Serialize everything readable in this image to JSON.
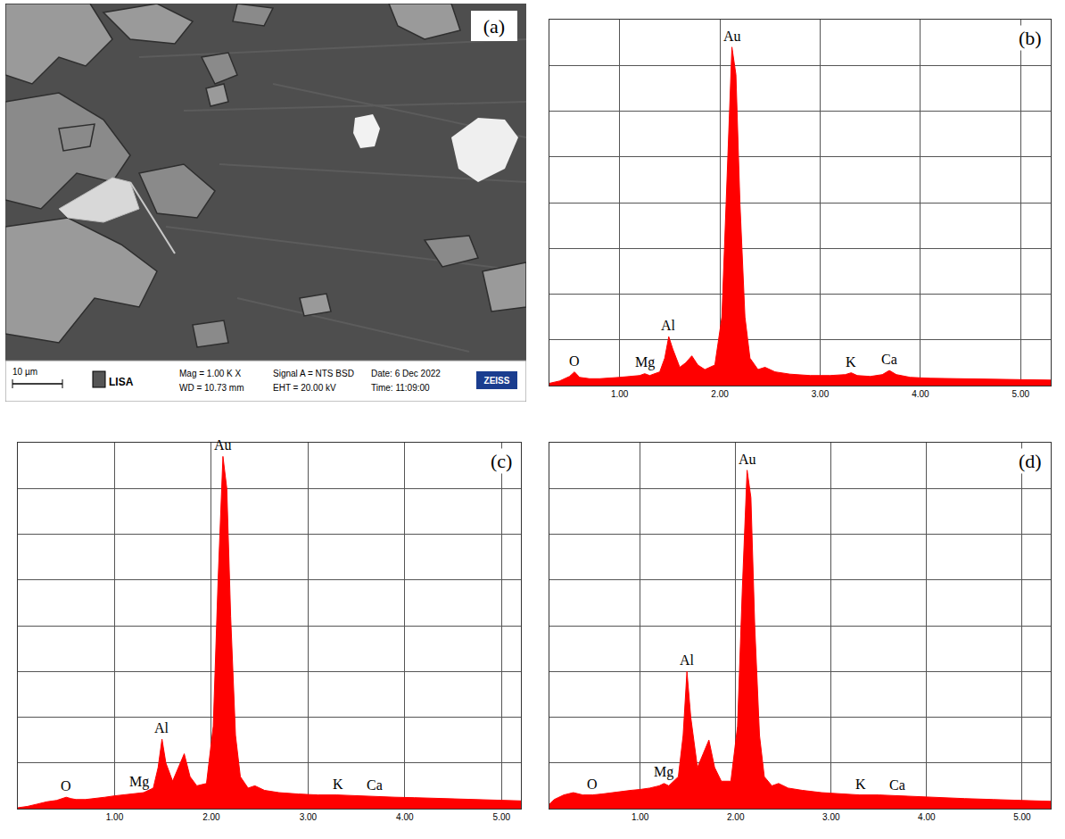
{
  "sem_image": {
    "panel": "(a)",
    "scale_bar": "10 µm",
    "logo": "LISA",
    "mag": "Mag =  1.00 K X",
    "wd": "WD = 10.73 mm",
    "signal": "Signal A = NTS BSD",
    "eht": "EHT = 20.00 kV",
    "date": "Date: 6 Dec 2022",
    "time": "Time: 11:09:00",
    "brand": "ZEISS"
  },
  "chart_data": [
    {
      "type": "area",
      "panel": "(b)",
      "color": "#ff0000",
      "grid": true,
      "tick_labels": "x",
      "xlim": [
        0.3,
        5.3
      ],
      "xticks": [
        {
          "value": 1,
          "label": "1.00"
        },
        {
          "value": 2,
          "label": "2.00"
        },
        {
          "value": 3,
          "label": "3.00"
        },
        {
          "value": 4,
          "label": "4.00"
        },
        {
          "value": 5,
          "label": "5.00"
        }
      ],
      "ylim": [
        0,
        8
      ],
      "yticks": [
        0,
        1,
        2,
        3,
        4,
        5,
        6,
        7,
        8
      ],
      "x": [
        0.3,
        0.4,
        0.5,
        0.55,
        0.6,
        0.7,
        0.8,
        0.9,
        1.0,
        1.1,
        1.2,
        1.25,
        1.3,
        1.4,
        1.45,
        1.49,
        1.53,
        1.6,
        1.66,
        1.72,
        1.78,
        1.85,
        1.95,
        2.02,
        2.07,
        2.12,
        2.16,
        2.2,
        2.25,
        2.3,
        2.38,
        2.45,
        2.55,
        2.7,
        2.9,
        3.1,
        3.25,
        3.31,
        3.37,
        3.5,
        3.62,
        3.69,
        3.76,
        3.9,
        4.1,
        4.4,
        4.7,
        5.0,
        5.3
      ],
      "values": [
        0.05,
        0.1,
        0.2,
        0.3,
        0.18,
        0.15,
        0.15,
        0.16,
        0.18,
        0.2,
        0.22,
        0.26,
        0.22,
        0.3,
        0.6,
        1.07,
        0.8,
        0.4,
        0.5,
        0.65,
        0.45,
        0.35,
        0.45,
        1.5,
        4.5,
        7.4,
        6.8,
        4.0,
        1.5,
        0.6,
        0.35,
        0.4,
        0.3,
        0.25,
        0.22,
        0.22,
        0.24,
        0.28,
        0.22,
        0.2,
        0.24,
        0.33,
        0.24,
        0.18,
        0.16,
        0.15,
        0.14,
        0.13,
        0.12
      ],
      "peaks": [
        {
          "label": "O",
          "x": 0.55,
          "y": 0.3
        },
        {
          "label": "Mg",
          "x": 1.25,
          "y": 0.26
        },
        {
          "label": "Al",
          "x": 1.49,
          "y": 1.07
        },
        {
          "label": "Au",
          "x": 2.12,
          "y": 7.4
        },
        {
          "label": "K",
          "x": 3.31,
          "y": 0.28
        },
        {
          "label": "Ca",
          "x": 3.69,
          "y": 0.33
        }
      ]
    },
    {
      "type": "area",
      "panel": "(c)",
      "color": "#ff0000",
      "grid": true,
      "tick_labels": "x",
      "xlim": [
        0,
        5.2
      ],
      "xticks": [
        {
          "value": 1,
          "label": "1.00"
        },
        {
          "value": 2,
          "label": "2.00"
        },
        {
          "value": 3,
          "label": "3.00"
        },
        {
          "value": 4,
          "label": "4.00"
        },
        {
          "value": 5,
          "label": "5.00"
        }
      ],
      "ylim": [
        0,
        8
      ],
      "yticks": [
        0,
        1,
        2,
        3,
        4,
        5,
        6,
        7,
        8
      ],
      "x": [
        0.0,
        0.1,
        0.2,
        0.3,
        0.4,
        0.5,
        0.55,
        0.6,
        0.7,
        0.8,
        0.9,
        1.0,
        1.1,
        1.2,
        1.25,
        1.3,
        1.4,
        1.45,
        1.49,
        1.53,
        1.6,
        1.66,
        1.72,
        1.78,
        1.85,
        1.95,
        2.02,
        2.07,
        2.12,
        2.16,
        2.2,
        2.25,
        2.3,
        2.38,
        2.45,
        2.55,
        2.7,
        2.9,
        3.1,
        3.3,
        3.5,
        3.7,
        3.9,
        4.1,
        4.4,
        4.7,
        5.0,
        5.2
      ],
      "values": [
        0.02,
        0.05,
        0.1,
        0.15,
        0.18,
        0.25,
        0.22,
        0.2,
        0.2,
        0.22,
        0.25,
        0.28,
        0.3,
        0.32,
        0.33,
        0.35,
        0.45,
        0.9,
        1.52,
        1.0,
        0.6,
        0.9,
        1.2,
        0.7,
        0.5,
        0.55,
        1.8,
        5.0,
        7.7,
        7.0,
        4.2,
        1.6,
        0.7,
        0.45,
        0.5,
        0.4,
        0.35,
        0.32,
        0.3,
        0.3,
        0.28,
        0.27,
        0.25,
        0.24,
        0.22,
        0.2,
        0.18,
        0.17
      ],
      "peaks": [
        {
          "label": "O",
          "x": 0.5,
          "y": 0.25
        },
        {
          "label": "Mg",
          "x": 1.25,
          "y": 0.33
        },
        {
          "label": "Al",
          "x": 1.49,
          "y": 1.52
        },
        {
          "label": "Au",
          "x": 2.12,
          "y": 7.7
        },
        {
          "label": "K",
          "x": 3.31,
          "y": 0.3
        },
        {
          "label": "Ca",
          "x": 3.69,
          "y": 0.28
        }
      ]
    },
    {
      "type": "area",
      "panel": "(d)",
      "color": "#ff0000",
      "grid": true,
      "tick_labels": "x",
      "xlim": [
        0.05,
        5.3
      ],
      "xticks": [
        {
          "value": 1,
          "label": "1.00"
        },
        {
          "value": 2,
          "label": "2.00"
        },
        {
          "value": 3,
          "label": "3.00"
        },
        {
          "value": 4,
          "label": "4.00"
        },
        {
          "value": 5,
          "label": "5.00"
        }
      ],
      "ylim": [
        0,
        8
      ],
      "yticks": [
        0,
        1,
        2,
        3,
        4,
        5,
        6,
        7,
        8
      ],
      "x": [
        0.05,
        0.1,
        0.2,
        0.3,
        0.4,
        0.5,
        0.6,
        0.7,
        0.8,
        0.9,
        1.0,
        1.1,
        1.2,
        1.25,
        1.3,
        1.4,
        1.45,
        1.49,
        1.53,
        1.6,
        1.66,
        1.72,
        1.78,
        1.85,
        1.95,
        2.02,
        2.07,
        2.12,
        2.16,
        2.2,
        2.25,
        2.3,
        2.38,
        2.45,
        2.55,
        2.7,
        2.9,
        3.1,
        3.3,
        3.5,
        3.7,
        3.9,
        4.1,
        4.4,
        4.7,
        5.0,
        5.3
      ],
      "values": [
        0.1,
        0.2,
        0.3,
        0.35,
        0.3,
        0.3,
        0.32,
        0.35,
        0.38,
        0.4,
        0.42,
        0.45,
        0.5,
        0.55,
        0.5,
        0.7,
        1.6,
        3.0,
        2.0,
        0.9,
        1.2,
        1.5,
        0.9,
        0.6,
        0.6,
        1.8,
        4.8,
        7.4,
        6.8,
        4.0,
        1.6,
        0.7,
        0.5,
        0.55,
        0.45,
        0.4,
        0.35,
        0.32,
        0.3,
        0.3,
        0.28,
        0.26,
        0.25,
        0.22,
        0.2,
        0.18,
        0.16
      ],
      "peaks": [
        {
          "label": "O",
          "x": 0.5,
          "y": 0.3
        },
        {
          "label": "Mg",
          "x": 1.25,
          "y": 0.55
        },
        {
          "label": "Al",
          "x": 1.49,
          "y": 3.0
        },
        {
          "label": "Au",
          "x": 2.12,
          "y": 7.4
        },
        {
          "label": "K",
          "x": 3.31,
          "y": 0.3
        },
        {
          "label": "Ca",
          "x": 3.69,
          "y": 0.28
        }
      ]
    }
  ]
}
